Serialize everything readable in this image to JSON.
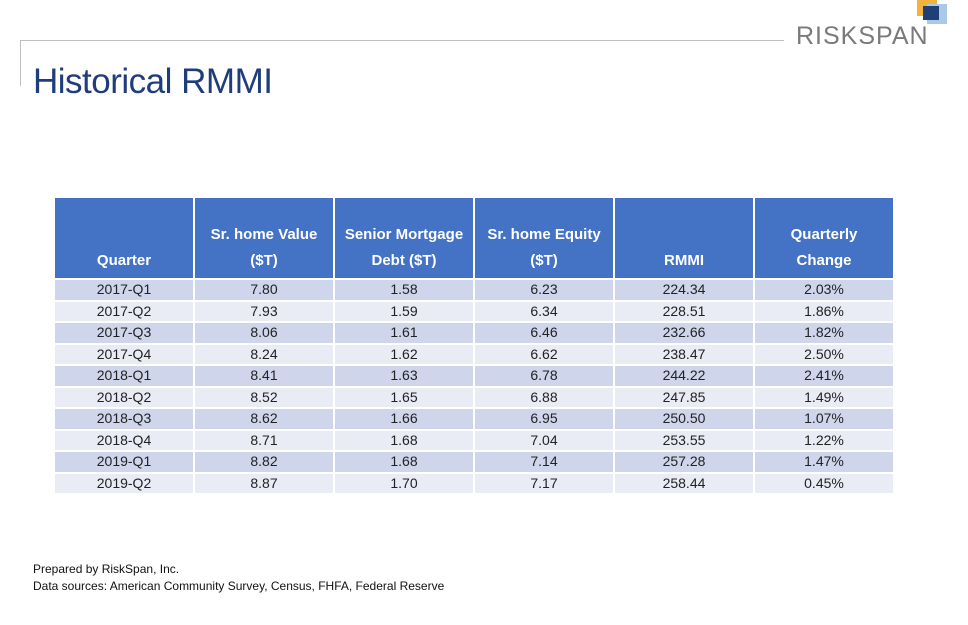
{
  "logo": {
    "text": "RISKSPAN"
  },
  "title": "Historical RMMI",
  "table": {
    "headers": [
      [
        "",
        "Quarter"
      ],
      [
        "Sr. home Value",
        "($T)"
      ],
      [
        "Senior Mortgage",
        "Debt ($T)"
      ],
      [
        "Sr. home Equity",
        "($T)"
      ],
      [
        "",
        "RMMI"
      ],
      [
        "Quarterly",
        "Change"
      ]
    ],
    "rows": [
      [
        "2017-Q1",
        "7.80",
        "1.58",
        "6.23",
        "224.34",
        "2.03%"
      ],
      [
        "2017-Q2",
        "7.93",
        "1.59",
        "6.34",
        "228.51",
        "1.86%"
      ],
      [
        "2017-Q3",
        "8.06",
        "1.61",
        "6.46",
        "232.66",
        "1.82%"
      ],
      [
        "2017-Q4",
        "8.24",
        "1.62",
        "6.62",
        "238.47",
        "2.50%"
      ],
      [
        "2018-Q1",
        "8.41",
        "1.63",
        "6.78",
        "244.22",
        "2.41%"
      ],
      [
        "2018-Q2",
        "8.52",
        "1.65",
        "6.88",
        "247.85",
        "1.49%"
      ],
      [
        "2018-Q3",
        "8.62",
        "1.66",
        "6.95",
        "250.50",
        "1.07%"
      ],
      [
        "2018-Q4",
        "8.71",
        "1.68",
        "7.04",
        "253.55",
        "1.22%"
      ],
      [
        "2019-Q1",
        "8.82",
        "1.68",
        "7.14",
        "257.28",
        "1.47%"
      ],
      [
        "2019-Q2",
        "8.87",
        "1.70",
        "7.17",
        "258.44",
        "0.45%"
      ]
    ]
  },
  "footer": {
    "prepared_by": "Prepared by RiskSpan, Inc.",
    "sources": "Data sources: American Community Survey, Census, FHFA, Federal Reserve"
  }
}
